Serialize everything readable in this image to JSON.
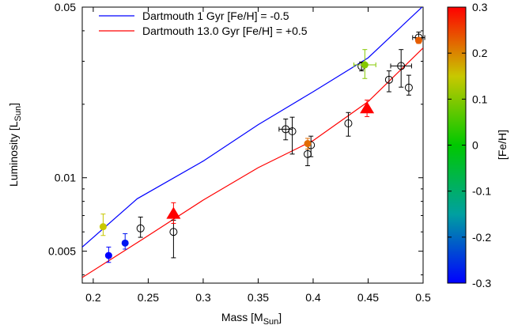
{
  "chart_data": {
    "type": "scatter",
    "title": "",
    "xlabel": {
      "main": "Mass [M",
      "sub": "Sun",
      "end": "]"
    },
    "ylabel": {
      "main": "Luminosity [L",
      "sub": "Sun",
      "end": "]"
    },
    "xlim": [
      0.19,
      0.5
    ],
    "ylim": [
      0.0037,
      0.05
    ],
    "y_scale": "log",
    "grid": false,
    "x_ticks": [
      0.2,
      0.25,
      0.3,
      0.35,
      0.4,
      0.45,
      0.5
    ],
    "x_tick_labels": [
      "0.2",
      "0.25",
      "0.3",
      "0.35",
      "0.4",
      "0.45",
      "0.5"
    ],
    "y_ticks": [
      0.005,
      0.01,
      0.05
    ],
    "y_tick_labels": [
      "0.005",
      "0.01",
      "0.05"
    ],
    "legend_position": "top-left",
    "lines": [
      {
        "name": "Dartmouth 1 Gyr [Fe/H] = -0.5",
        "color": "#0000ff",
        "points": [
          [
            0.19,
            0.0052
          ],
          [
            0.24,
            0.0082
          ],
          [
            0.3,
            0.0117
          ],
          [
            0.35,
            0.0165
          ],
          [
            0.4,
            0.0225
          ],
          [
            0.45,
            0.031
          ],
          [
            0.5,
            0.0505
          ]
        ]
      },
      {
        "name": "Dartmouth 13.0 Gyr [Fe/H] = +0.5",
        "color": "#ff0000",
        "points": [
          [
            0.19,
            0.0039
          ],
          [
            0.245,
            0.0056
          ],
          [
            0.3,
            0.0081
          ],
          [
            0.35,
            0.011
          ],
          [
            0.4,
            0.0142
          ],
          [
            0.45,
            0.0205
          ],
          [
            0.5,
            0.034
          ]
        ]
      }
    ],
    "open_points": [
      {
        "x": 0.243,
        "y": 0.0062,
        "xerr": 0.0,
        "ylo": 0.0057,
        "yhi": 0.0069
      },
      {
        "x": 0.273,
        "y": 0.006,
        "xerr": 0.0,
        "ylo": 0.0047,
        "yhi": 0.0067
      },
      {
        "x": 0.375,
        "y": 0.0158,
        "xerr": 0.006,
        "ylo": 0.0143,
        "yhi": 0.0174
      },
      {
        "x": 0.381,
        "y": 0.0155,
        "xerr": 0.0,
        "ylo": 0.0125,
        "yhi": 0.0177
      },
      {
        "x": 0.395,
        "y": 0.0125,
        "xerr": 0.0,
        "ylo": 0.0112,
        "yhi": 0.014
      },
      {
        "x": 0.398,
        "y": 0.0136,
        "xerr": 0.0,
        "ylo": 0.0122,
        "yhi": 0.0148
      },
      {
        "x": 0.432,
        "y": 0.0167,
        "xerr": 0.0,
        "ylo": 0.0148,
        "yhi": 0.0185
      },
      {
        "x": 0.444,
        "y": 0.0286,
        "xerr": 0.0,
        "ylo": 0.0274,
        "yhi": 0.0298
      },
      {
        "x": 0.469,
        "y": 0.0252,
        "xerr": 0.0,
        "ylo": 0.0225,
        "yhi": 0.0274
      },
      {
        "x": 0.48,
        "y": 0.0287,
        "xerr": 0.0095,
        "ylo": 0.0235,
        "yhi": 0.0335
      },
      {
        "x": 0.487,
        "y": 0.0234,
        "xerr": 0.0,
        "ylo": 0.0218,
        "yhi": 0.0263
      },
      {
        "x": 0.496,
        "y": 0.0375,
        "xerr": 0.0055,
        "ylo": 0.0358,
        "yhi": 0.0395
      }
    ],
    "filled_points": [
      {
        "x": 0.209,
        "y": 0.0063,
        "feh": 0.15,
        "ylo": 0.0058,
        "yhi": 0.0071
      },
      {
        "x": 0.214,
        "y": 0.0048,
        "feh": -0.3,
        "ylo": 0.0045,
        "yhi": 0.0052
      },
      {
        "x": 0.229,
        "y": 0.0054,
        "feh": -0.28,
        "ylo": 0.0051,
        "yhi": 0.0059
      },
      {
        "x": 0.395,
        "y": 0.0138,
        "feh": 0.22,
        "ylo": 0.0131,
        "yhi": 0.0145
      },
      {
        "x": 0.447,
        "y": 0.029,
        "feh": 0.1,
        "ylo": 0.0255,
        "yhi": 0.0335,
        "xerr": 0.01
      },
      {
        "x": 0.496,
        "y": 0.0365,
        "feh": 0.23,
        "ylo": 0.0355,
        "yhi": 0.0375
      }
    ],
    "triangles": [
      {
        "x": 0.273,
        "y": 0.0071,
        "feh": 0.3,
        "ylo": 0.0065,
        "yhi": 0.0079
      },
      {
        "x": 0.449,
        "y": 0.0192,
        "feh": 0.3,
        "ylo": 0.0178,
        "yhi": 0.0208
      }
    ],
    "colorbar": {
      "label": "[Fe/H]",
      "min": -0.3,
      "max": 0.3,
      "ticks": [
        0.3,
        0.2,
        0.1,
        0,
        -0.1,
        -0.2,
        -0.3
      ],
      "tick_labels": [
        "0.3",
        "0.2",
        "0.1",
        "0",
        "-0.1",
        "-0.2",
        "-0.3"
      ],
      "colors": [
        "#0000ff",
        "#00a0a0",
        "#00c800",
        "#c8c800",
        "#ff0000"
      ]
    }
  }
}
